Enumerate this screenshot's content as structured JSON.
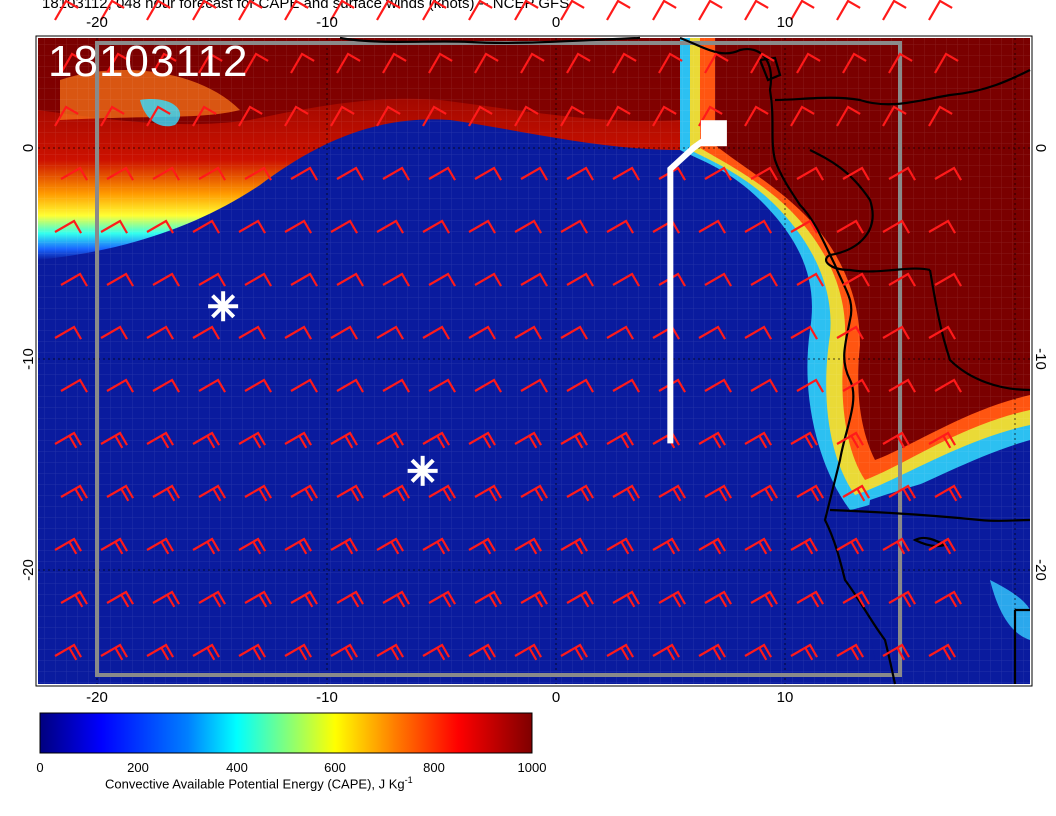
{
  "title": "18103112, 048 hour forecast for CAPE and surface winds (knots) -- NCEP GFS",
  "datetime_stamp": "18103112",
  "map": {
    "projection": "lat-lon",
    "lon_range": [
      -22.5,
      20.5
    ],
    "lat_range": [
      -26,
      5
    ],
    "lon_ticks_top": [
      "-20",
      "-10",
      "0",
      "10"
    ],
    "lon_ticks_bottom": [
      "-20",
      "-10",
      "0",
      "10"
    ],
    "lat_ticks_left": [
      "0",
      "-10",
      "-20"
    ],
    "lat_ticks_right": [
      "0",
      "-10",
      "-20"
    ],
    "field": "Convective Available Potential Energy (CAPE)",
    "overlay": "surface wind barbs (knots)",
    "barb_color": "#ff1a1a",
    "land_color": "#7a0000",
    "ocean_color": "#0a1b9e",
    "coastline_color": "#000000",
    "grid_box_color": "#808080",
    "markers": [
      {
        "kind": "asterisk",
        "lon": -14.5,
        "lat": -7.5,
        "color": "#ffffff"
      },
      {
        "kind": "asterisk",
        "lon": -5.8,
        "lat": -15.3,
        "color": "#ffffff"
      }
    ],
    "track": {
      "color": "#ffffff",
      "points": [
        [
          5,
          -14
        ],
        [
          5,
          -1
        ],
        [
          6,
          0
        ],
        [
          6.9,
          0.7
        ]
      ],
      "end_marker": "square"
    }
  },
  "colorbar": {
    "title": "Convective Available Potential Energy (CAPE), J Kg",
    "title_superscript": "-1",
    "tick_labels": [
      "0",
      "200",
      "400",
      "600",
      "800",
      "1000"
    ],
    "min": 0,
    "max": 1000,
    "colormap": [
      "#00007f",
      "#0000ff",
      "#007fff",
      "#00ffff",
      "#7fff7f",
      "#ffff00",
      "#ff7f00",
      "#ff0000",
      "#7f0000"
    ]
  }
}
